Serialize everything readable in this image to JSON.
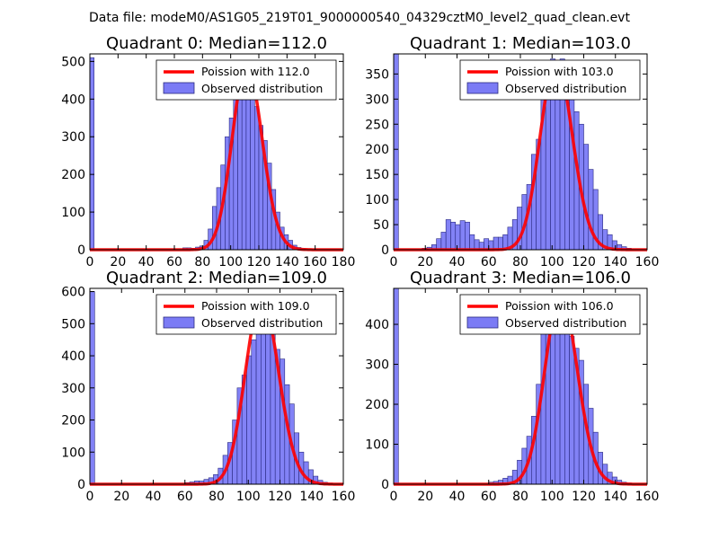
{
  "figure": {
    "suptitle": "Data file: modeM0/AS1G05_219T01_9000000540_04329cztM0_level2_quad_clean.evt"
  },
  "colors": {
    "bar_fill": "#7b7bf5",
    "bar_edge": "#2a2a80",
    "poisson_line": "#ff0000",
    "axis": "#000000"
  },
  "chart_data": [
    {
      "type": "bar",
      "title": "Quadrant 0: Median=112.0",
      "xlim": [
        0,
        180
      ],
      "ylim": [
        0,
        520
      ],
      "xticks": [
        0,
        20,
        40,
        60,
        80,
        100,
        120,
        140,
        160,
        180
      ],
      "yticks": [
        0,
        100,
        200,
        300,
        400,
        500
      ],
      "bin_width": 3,
      "legend": {
        "position": "top-right",
        "entries": [
          "Poission with 112.0",
          "Observed distribution"
        ]
      },
      "median": 112.0,
      "poisson_peak": 490,
      "histogram": [
        [
          0,
          510
        ],
        [
          66,
          5
        ],
        [
          69,
          5
        ],
        [
          72,
          4
        ],
        [
          75,
          7
        ],
        [
          78,
          10
        ],
        [
          81,
          25
        ],
        [
          84,
          55
        ],
        [
          87,
          115
        ],
        [
          90,
          165
        ],
        [
          93,
          225
        ],
        [
          96,
          300
        ],
        [
          99,
          350
        ],
        [
          102,
          420
        ],
        [
          105,
          440
        ],
        [
          108,
          480
        ],
        [
          111,
          440
        ],
        [
          114,
          420
        ],
        [
          117,
          380
        ],
        [
          120,
          330
        ],
        [
          123,
          290
        ],
        [
          126,
          230
        ],
        [
          129,
          160
        ],
        [
          132,
          100
        ],
        [
          135,
          60
        ],
        [
          138,
          40
        ],
        [
          141,
          25
        ],
        [
          144,
          12
        ],
        [
          147,
          6
        ],
        [
          150,
          3
        ]
      ]
    },
    {
      "type": "bar",
      "title": "Quadrant 1: Median=103.0",
      "xlim": [
        0,
        160
      ],
      "ylim": [
        0,
        390
      ],
      "xticks": [
        0,
        20,
        40,
        60,
        80,
        100,
        120,
        140,
        160
      ],
      "yticks": [
        0,
        50,
        100,
        150,
        200,
        250,
        300,
        350
      ],
      "bin_width": 3,
      "legend": {
        "position": "top-right",
        "entries": [
          "Poission with 103.0",
          "Observed distribution"
        ]
      },
      "median": 103.0,
      "poisson_peak": 375,
      "histogram": [
        [
          0,
          390
        ],
        [
          18,
          3
        ],
        [
          21,
          5
        ],
        [
          24,
          10
        ],
        [
          27,
          22
        ],
        [
          30,
          35
        ],
        [
          33,
          60
        ],
        [
          36,
          55
        ],
        [
          39,
          50
        ],
        [
          42,
          58
        ],
        [
          45,
          55
        ],
        [
          48,
          30
        ],
        [
          51,
          20
        ],
        [
          54,
          15
        ],
        [
          57,
          22
        ],
        [
          60,
          18
        ],
        [
          63,
          25
        ],
        [
          66,
          25
        ],
        [
          69,
          30
        ],
        [
          72,
          45
        ],
        [
          75,
          60
        ],
        [
          78,
          85
        ],
        [
          81,
          110
        ],
        [
          84,
          130
        ],
        [
          87,
          190
        ],
        [
          90,
          220
        ],
        [
          93,
          300
        ],
        [
          96,
          330
        ],
        [
          99,
          380
        ],
        [
          102,
          375
        ],
        [
          105,
          380
        ],
        [
          108,
          330
        ],
        [
          111,
          300
        ],
        [
          114,
          275
        ],
        [
          117,
          250
        ],
        [
          120,
          210
        ],
        [
          123,
          160
        ],
        [
          126,
          120
        ],
        [
          129,
          70
        ],
        [
          132,
          40
        ],
        [
          135,
          30
        ],
        [
          138,
          18
        ],
        [
          141,
          10
        ],
        [
          144,
          6
        ],
        [
          147,
          3
        ]
      ]
    },
    {
      "type": "bar",
      "title": "Quadrant 2: Median=109.0",
      "xlim": [
        0,
        160
      ],
      "ylim": [
        0,
        610
      ],
      "xticks": [
        0,
        20,
        40,
        60,
        80,
        100,
        120,
        140,
        160
      ],
      "yticks": [
        0,
        100,
        200,
        300,
        400,
        500,
        600
      ],
      "bin_width": 3,
      "legend": {
        "position": "top-right",
        "entries": [
          "Poission with 109.0",
          "Observed distribution"
        ]
      },
      "median": 109.0,
      "poisson_peak": 580,
      "histogram": [
        [
          0,
          600
        ],
        [
          60,
          5
        ],
        [
          63,
          7
        ],
        [
          66,
          10
        ],
        [
          69,
          10
        ],
        [
          72,
          15
        ],
        [
          75,
          20
        ],
        [
          78,
          30
        ],
        [
          81,
          50
        ],
        [
          84,
          90
        ],
        [
          87,
          130
        ],
        [
          90,
          200
        ],
        [
          93,
          300
        ],
        [
          96,
          340
        ],
        [
          99,
          400
        ],
        [
          102,
          450
        ],
        [
          105,
          470
        ],
        [
          108,
          500
        ],
        [
          111,
          550
        ],
        [
          114,
          490
        ],
        [
          117,
          420
        ],
        [
          120,
          390
        ],
        [
          123,
          310
        ],
        [
          126,
          250
        ],
        [
          129,
          160
        ],
        [
          132,
          100
        ],
        [
          135,
          70
        ],
        [
          138,
          45
        ],
        [
          141,
          25
        ],
        [
          144,
          12
        ],
        [
          147,
          6
        ],
        [
          150,
          3
        ]
      ]
    },
    {
      "type": "bar",
      "title": "Quadrant 3: Median=106.0",
      "xlim": [
        0,
        160
      ],
      "ylim": [
        0,
        490
      ],
      "xticks": [
        0,
        20,
        40,
        60,
        80,
        100,
        120,
        140,
        160
      ],
      "yticks": [
        0,
        100,
        200,
        300,
        400
      ],
      "bin_width": 3,
      "legend": {
        "position": "top-right",
        "entries": [
          "Poission with 106.0",
          "Observed distribution"
        ]
      },
      "median": 106.0,
      "poisson_peak": 470,
      "histogram": [
        [
          0,
          490
        ],
        [
          60,
          5
        ],
        [
          63,
          7
        ],
        [
          66,
          10
        ],
        [
          69,
          15
        ],
        [
          72,
          20
        ],
        [
          75,
          35
        ],
        [
          78,
          60
        ],
        [
          81,
          90
        ],
        [
          84,
          120
        ],
        [
          87,
          170
        ],
        [
          90,
          250
        ],
        [
          93,
          380
        ],
        [
          96,
          390
        ],
        [
          99,
          430
        ],
        [
          102,
          470
        ],
        [
          105,
          460
        ],
        [
          108,
          420
        ],
        [
          111,
          370
        ],
        [
          114,
          340
        ],
        [
          117,
          310
        ],
        [
          120,
          250
        ],
        [
          123,
          190
        ],
        [
          126,
          130
        ],
        [
          129,
          80
        ],
        [
          132,
          50
        ],
        [
          135,
          30
        ],
        [
          138,
          18
        ],
        [
          141,
          10
        ],
        [
          144,
          5
        ],
        [
          147,
          3
        ]
      ]
    }
  ]
}
